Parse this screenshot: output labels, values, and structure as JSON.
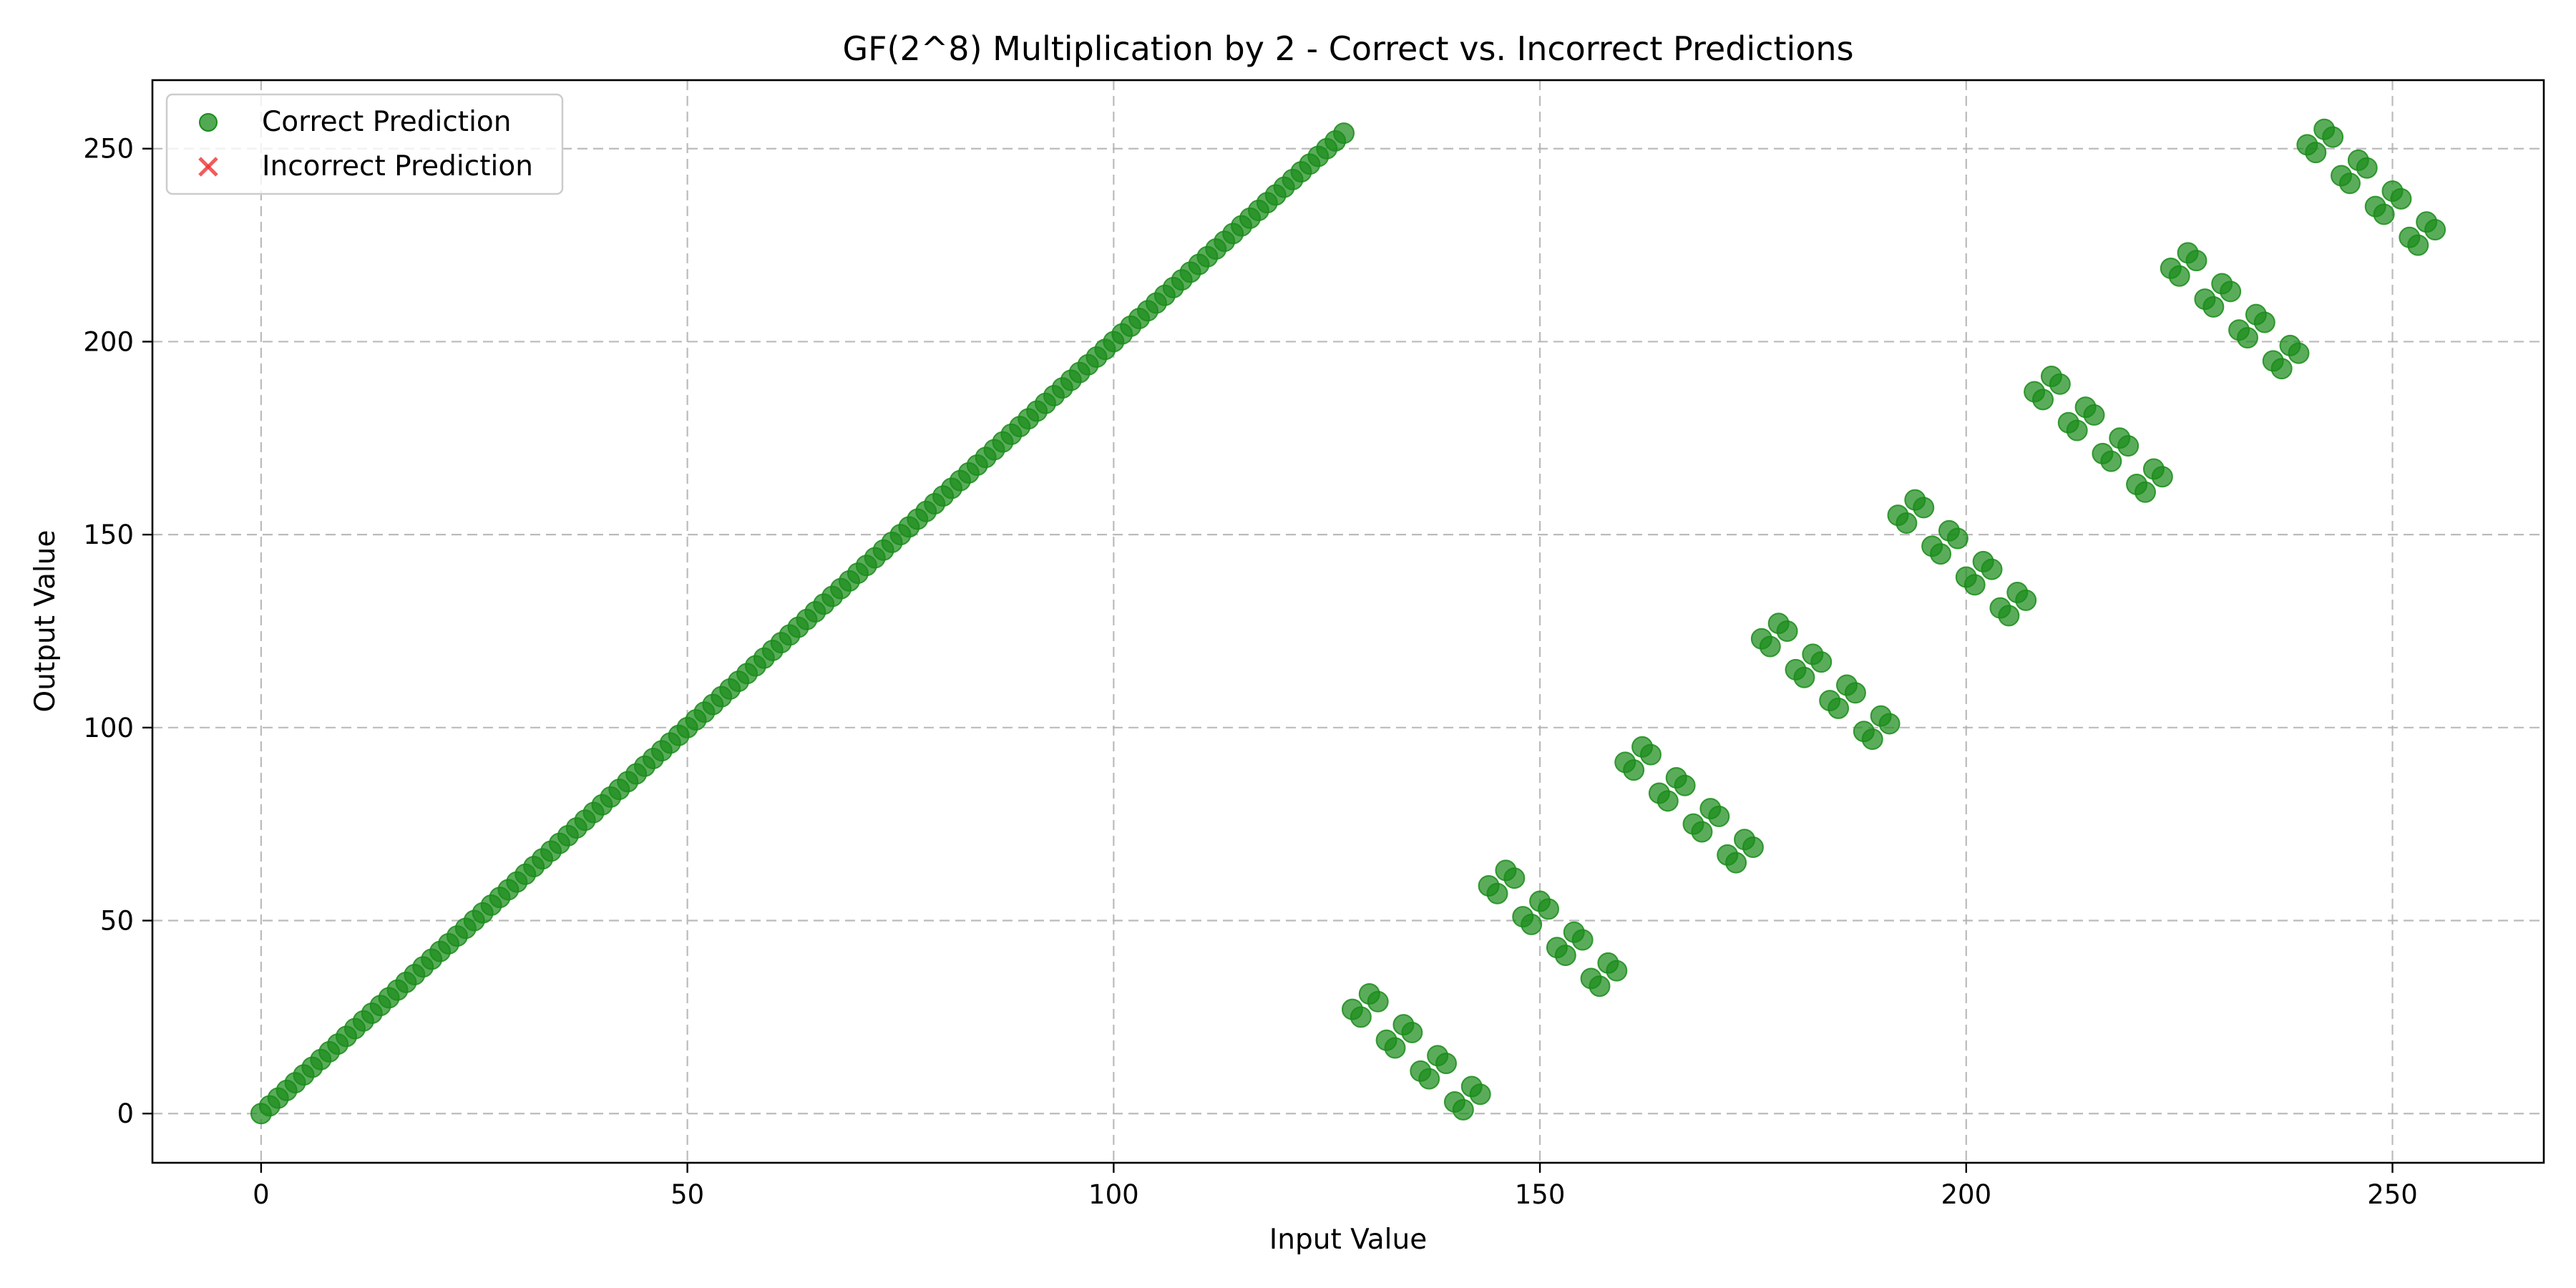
{
  "chart_data": {
    "type": "scatter",
    "title": "GF(2^8) Multiplication by 2 - Correct vs. Incorrect Predictions",
    "xlabel": "Input Value",
    "ylabel": "Output Value",
    "xlim": [
      -12.75,
      267.75
    ],
    "ylim": [
      -12.75,
      267.75
    ],
    "xticks": [
      0,
      50,
      100,
      150,
      200,
      250
    ],
    "yticks": [
      0,
      50,
      100,
      150,
      200,
      250
    ],
    "grid": true,
    "legend_position": "top-left",
    "series": [
      {
        "name": "Correct Prediction",
        "marker": "circle",
        "color": "#1a8c1a",
        "x_range": [
          0,
          255
        ],
        "rule": "y = (x * 2) mod 256, XOR 27 when x >= 128"
      },
      {
        "name": "Incorrect Prediction",
        "marker": "x",
        "color": "#ee3333",
        "x": [],
        "y": []
      }
    ]
  }
}
